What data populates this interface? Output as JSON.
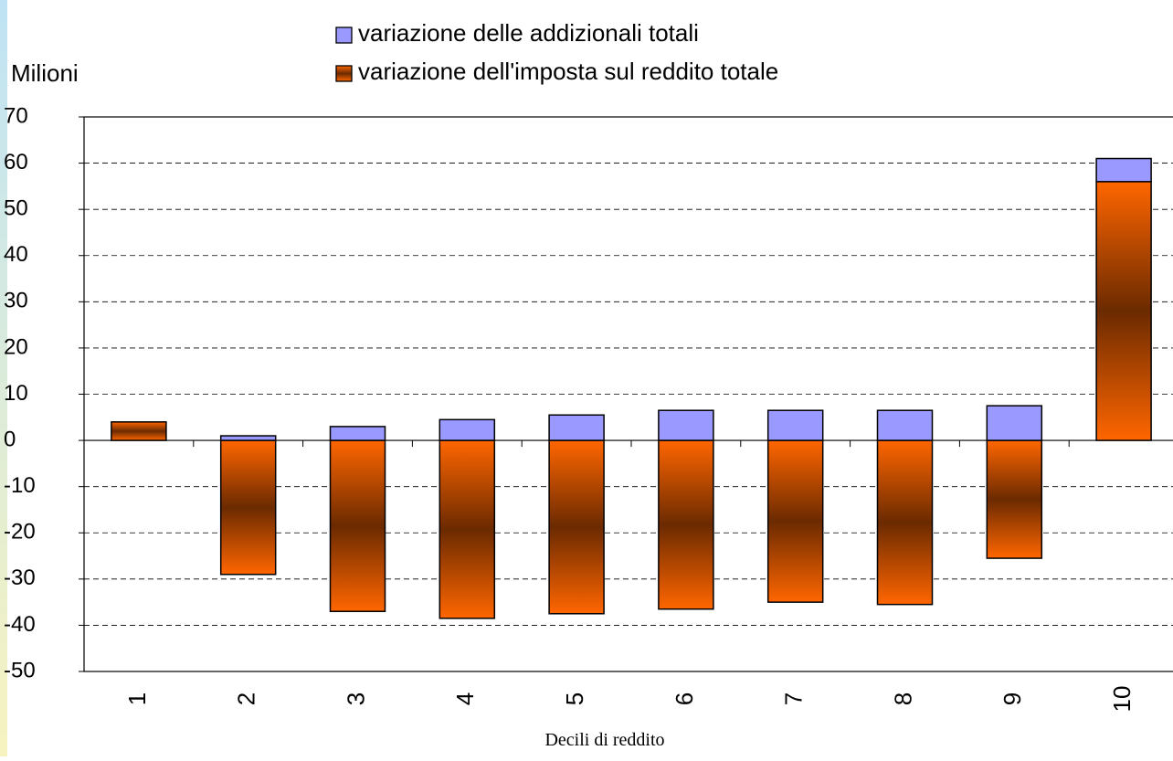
{
  "chart_data": {
    "type": "bar",
    "stacked": true,
    "y_label": "Milioni",
    "x_label": "Decili di reddito",
    "categories": [
      "1",
      "2",
      "3",
      "4",
      "5",
      "6",
      "7",
      "8",
      "9",
      "10"
    ],
    "series": [
      {
        "name": "variazione dell'imposta sul reddito totale",
        "color": "#ff6600",
        "values": [
          4,
          -29,
          -37,
          -38.5,
          -37.5,
          -36.5,
          -35,
          -35.5,
          -25.5,
          56
        ]
      },
      {
        "name": "variazione delle addizionali totali",
        "color": "#9999ff",
        "values": [
          0,
          1,
          3,
          4.5,
          5.5,
          6.5,
          6.5,
          6.5,
          7.5,
          5
        ]
      }
    ],
    "ylim": [
      -50,
      70
    ],
    "yticks": [
      -50,
      -40,
      -30,
      -20,
      -10,
      0,
      10,
      20,
      30,
      40,
      50,
      60,
      70
    ],
    "grid": true
  }
}
